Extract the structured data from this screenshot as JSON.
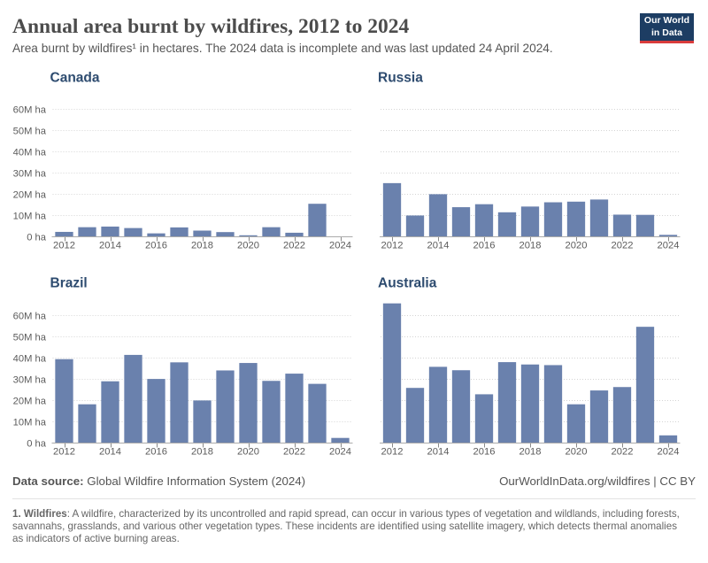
{
  "header": {
    "title": "Annual area burnt by wildfires, 2012 to 2024",
    "subtitle": "Area burnt by wildfires¹ in hectares. The 2024 data is incomplete and was last updated 24 April 2024.",
    "logo": {
      "line1": "Our World",
      "line2": "in Data"
    }
  },
  "footer": {
    "datasource_label": "Data source:",
    "datasource_value": " Global Wildfire Information System (2024)",
    "attribution": "OurWorldInData.org/wildfires | CC BY",
    "note_label": "1. Wildfires",
    "note_text": ": A wildfire, characterized by its uncontrolled and rapid spread, can occur in various types of vegetation and wildlands, including forests, savannahs, grasslands, and various other vegetation types. These incidents are identified using satellite imagery, which detects thermal anomalies as indicators of active burning areas."
  },
  "colors": {
    "bar": "#6a81ad",
    "facet_title": "#2d4b6f",
    "axis_label": "#5b5b5b",
    "gridline": "#d4d4d4",
    "axis_line": "#ababab",
    "tick": "#8a8a8a",
    "logo_bg": "#1d3d63",
    "logo_stripe": "#d93c3c"
  },
  "chart_data": [
    {
      "type": "bar",
      "title": "Canada",
      "x": [
        2012,
        2013,
        2014,
        2015,
        2016,
        2017,
        2018,
        2019,
        2020,
        2021,
        2022,
        2023,
        2024
      ],
      "values": [
        2.1,
        4.3,
        4.6,
        3.9,
        1.4,
        4.2,
        2.7,
        2.0,
        0.5,
        4.3,
        1.7,
        15.3,
        0.05
      ],
      "unit": "M ha",
      "ylim": [
        0,
        60
      ],
      "ytick_interval": 10,
      "show_y_labels": true,
      "xtick_labels": [
        2012,
        2014,
        2016,
        2018,
        2020,
        2022,
        2024
      ],
      "grid": true,
      "col": 0,
      "row": 0
    },
    {
      "type": "bar",
      "title": "Russia",
      "x": [
        2012,
        2013,
        2014,
        2015,
        2016,
        2017,
        2018,
        2019,
        2020,
        2021,
        2022,
        2023,
        2024
      ],
      "values": [
        25.0,
        9.8,
        19.8,
        13.7,
        15.1,
        11.3,
        14.0,
        16.0,
        16.3,
        17.3,
        10.2,
        10.1,
        0.7
      ],
      "unit": "M ha",
      "ylim": [
        0,
        60
      ],
      "ytick_interval": 10,
      "show_y_labels": false,
      "xtick_labels": [
        2012,
        2014,
        2016,
        2018,
        2020,
        2022,
        2024
      ],
      "grid": true,
      "col": 1,
      "row": 0
    },
    {
      "type": "bar",
      "title": "Brazil",
      "x": [
        2012,
        2013,
        2014,
        2015,
        2016,
        2017,
        2018,
        2019,
        2020,
        2021,
        2022,
        2023,
        2024
      ],
      "values": [
        39.2,
        18.0,
        28.8,
        41.2,
        29.9,
        37.7,
        19.8,
        33.9,
        37.4,
        29.0,
        32.4,
        27.6,
        2.2
      ],
      "unit": "M ha",
      "ylim": [
        0,
        60
      ],
      "ytick_interval": 10,
      "show_y_labels": true,
      "xtick_labels": [
        2012,
        2014,
        2016,
        2018,
        2020,
        2022,
        2024
      ],
      "grid": true,
      "col": 0,
      "row": 1
    },
    {
      "type": "bar",
      "title": "Australia",
      "x": [
        2012,
        2013,
        2014,
        2015,
        2016,
        2017,
        2018,
        2019,
        2020,
        2021,
        2022,
        2023,
        2024
      ],
      "values": [
        65.4,
        25.7,
        35.6,
        34.0,
        22.7,
        37.8,
        36.7,
        36.4,
        18.0,
        24.5,
        26.1,
        54.4,
        3.4
      ],
      "unit": "M ha",
      "ylim": [
        0,
        60
      ],
      "ytick_interval": 10,
      "show_y_labels": false,
      "xtick_labels": [
        2012,
        2014,
        2016,
        2018,
        2020,
        2022,
        2024
      ],
      "grid": true,
      "col": 1,
      "row": 1
    }
  ]
}
